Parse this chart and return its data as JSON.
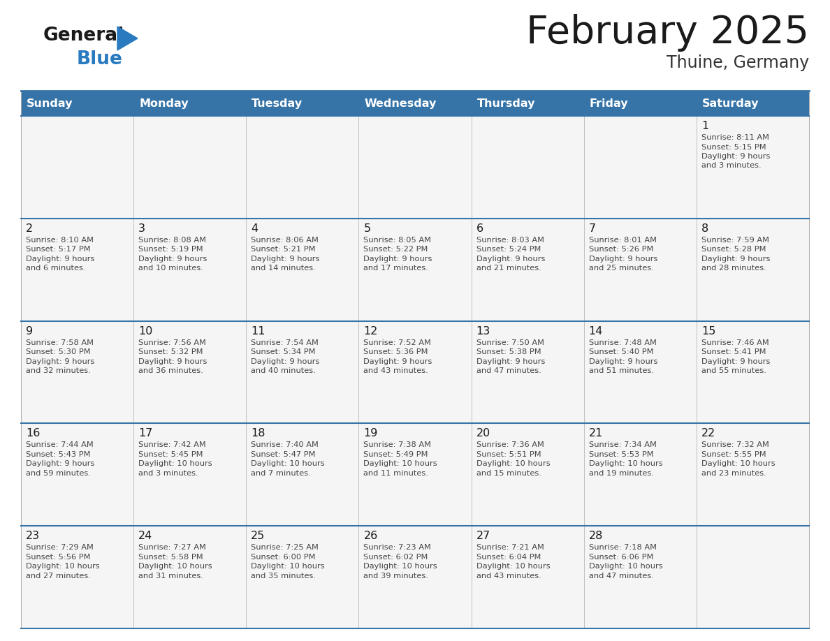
{
  "title": "February 2025",
  "subtitle": "Thuine, Germany",
  "header_bg": "#3674a8",
  "header_text_color": "#ffffff",
  "cell_bg": "#f5f5f5",
  "day_headers": [
    "Sunday",
    "Monday",
    "Tuesday",
    "Wednesday",
    "Thursday",
    "Friday",
    "Saturday"
  ],
  "title_color": "#1a1a1a",
  "subtitle_color": "#333333",
  "line_color": "#3674a8",
  "day_num_color": "#1a1a1a",
  "cell_text_color": "#444444",
  "calendar": [
    [
      {
        "day": null,
        "sunrise": null,
        "sunset": null,
        "daylight_h": null,
        "daylight_m": null
      },
      {
        "day": null,
        "sunrise": null,
        "sunset": null,
        "daylight_h": null,
        "daylight_m": null
      },
      {
        "day": null,
        "sunrise": null,
        "sunset": null,
        "daylight_h": null,
        "daylight_m": null
      },
      {
        "day": null,
        "sunrise": null,
        "sunset": null,
        "daylight_h": null,
        "daylight_m": null
      },
      {
        "day": null,
        "sunrise": null,
        "sunset": null,
        "daylight_h": null,
        "daylight_m": null
      },
      {
        "day": null,
        "sunrise": null,
        "sunset": null,
        "daylight_h": null,
        "daylight_m": null
      },
      {
        "day": 1,
        "sunrise": "8:11 AM",
        "sunset": "5:15 PM",
        "daylight_h": "9 hours",
        "daylight_m": "and 3 minutes."
      }
    ],
    [
      {
        "day": 2,
        "sunrise": "8:10 AM",
        "sunset": "5:17 PM",
        "daylight_h": "9 hours",
        "daylight_m": "and 6 minutes."
      },
      {
        "day": 3,
        "sunrise": "8:08 AM",
        "sunset": "5:19 PM",
        "daylight_h": "9 hours",
        "daylight_m": "and 10 minutes."
      },
      {
        "day": 4,
        "sunrise": "8:06 AM",
        "sunset": "5:21 PM",
        "daylight_h": "9 hours",
        "daylight_m": "and 14 minutes."
      },
      {
        "day": 5,
        "sunrise": "8:05 AM",
        "sunset": "5:22 PM",
        "daylight_h": "9 hours",
        "daylight_m": "and 17 minutes."
      },
      {
        "day": 6,
        "sunrise": "8:03 AM",
        "sunset": "5:24 PM",
        "daylight_h": "9 hours",
        "daylight_m": "and 21 minutes."
      },
      {
        "day": 7,
        "sunrise": "8:01 AM",
        "sunset": "5:26 PM",
        "daylight_h": "9 hours",
        "daylight_m": "and 25 minutes."
      },
      {
        "day": 8,
        "sunrise": "7:59 AM",
        "sunset": "5:28 PM",
        "daylight_h": "9 hours",
        "daylight_m": "and 28 minutes."
      }
    ],
    [
      {
        "day": 9,
        "sunrise": "7:58 AM",
        "sunset": "5:30 PM",
        "daylight_h": "9 hours",
        "daylight_m": "and 32 minutes."
      },
      {
        "day": 10,
        "sunrise": "7:56 AM",
        "sunset": "5:32 PM",
        "daylight_h": "9 hours",
        "daylight_m": "and 36 minutes."
      },
      {
        "day": 11,
        "sunrise": "7:54 AM",
        "sunset": "5:34 PM",
        "daylight_h": "9 hours",
        "daylight_m": "and 40 minutes."
      },
      {
        "day": 12,
        "sunrise": "7:52 AM",
        "sunset": "5:36 PM",
        "daylight_h": "9 hours",
        "daylight_m": "and 43 minutes."
      },
      {
        "day": 13,
        "sunrise": "7:50 AM",
        "sunset": "5:38 PM",
        "daylight_h": "9 hours",
        "daylight_m": "and 47 minutes."
      },
      {
        "day": 14,
        "sunrise": "7:48 AM",
        "sunset": "5:40 PM",
        "daylight_h": "9 hours",
        "daylight_m": "and 51 minutes."
      },
      {
        "day": 15,
        "sunrise": "7:46 AM",
        "sunset": "5:41 PM",
        "daylight_h": "9 hours",
        "daylight_m": "and 55 minutes."
      }
    ],
    [
      {
        "day": 16,
        "sunrise": "7:44 AM",
        "sunset": "5:43 PM",
        "daylight_h": "9 hours",
        "daylight_m": "and 59 minutes."
      },
      {
        "day": 17,
        "sunrise": "7:42 AM",
        "sunset": "5:45 PM",
        "daylight_h": "10 hours",
        "daylight_m": "and 3 minutes."
      },
      {
        "day": 18,
        "sunrise": "7:40 AM",
        "sunset": "5:47 PM",
        "daylight_h": "10 hours",
        "daylight_m": "and 7 minutes."
      },
      {
        "day": 19,
        "sunrise": "7:38 AM",
        "sunset": "5:49 PM",
        "daylight_h": "10 hours",
        "daylight_m": "and 11 minutes."
      },
      {
        "day": 20,
        "sunrise": "7:36 AM",
        "sunset": "5:51 PM",
        "daylight_h": "10 hours",
        "daylight_m": "and 15 minutes."
      },
      {
        "day": 21,
        "sunrise": "7:34 AM",
        "sunset": "5:53 PM",
        "daylight_h": "10 hours",
        "daylight_m": "and 19 minutes."
      },
      {
        "day": 22,
        "sunrise": "7:32 AM",
        "sunset": "5:55 PM",
        "daylight_h": "10 hours",
        "daylight_m": "and 23 minutes."
      }
    ],
    [
      {
        "day": 23,
        "sunrise": "7:29 AM",
        "sunset": "5:56 PM",
        "daylight_h": "10 hours",
        "daylight_m": "and 27 minutes."
      },
      {
        "day": 24,
        "sunrise": "7:27 AM",
        "sunset": "5:58 PM",
        "daylight_h": "10 hours",
        "daylight_m": "and 31 minutes."
      },
      {
        "day": 25,
        "sunrise": "7:25 AM",
        "sunset": "6:00 PM",
        "daylight_h": "10 hours",
        "daylight_m": "and 35 minutes."
      },
      {
        "day": 26,
        "sunrise": "7:23 AM",
        "sunset": "6:02 PM",
        "daylight_h": "10 hours",
        "daylight_m": "and 39 minutes."
      },
      {
        "day": 27,
        "sunrise": "7:21 AM",
        "sunset": "6:04 PM",
        "daylight_h": "10 hours",
        "daylight_m": "and 43 minutes."
      },
      {
        "day": 28,
        "sunrise": "7:18 AM",
        "sunset": "6:06 PM",
        "daylight_h": "10 hours",
        "daylight_m": "and 47 minutes."
      },
      {
        "day": null,
        "sunrise": null,
        "sunset": null,
        "daylight_h": null,
        "daylight_m": null
      }
    ]
  ],
  "logo_general_color": "#1a1a1a",
  "logo_blue_color": "#2a7ac0",
  "logo_triangle_color": "#2a7ac0"
}
